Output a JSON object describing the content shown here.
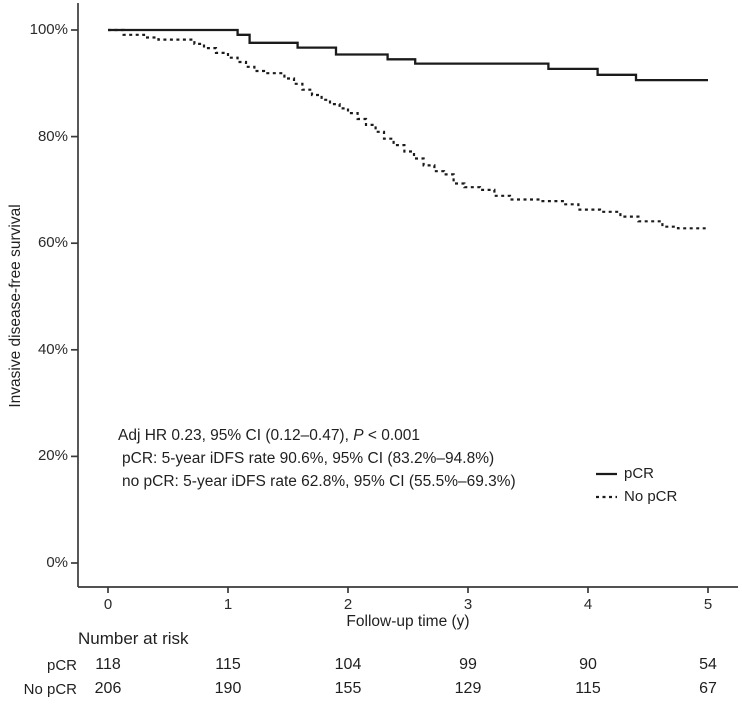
{
  "chart_data": {
    "type": "line",
    "variant": "kaplan-meier-step",
    "title": "",
    "xlabel": "Follow-up time (y)",
    "ylabel": "Invasive disease-free survival",
    "xlim": [
      0,
      5
    ],
    "ylim_pct": [
      0,
      100
    ],
    "x_ticks": [
      "0",
      "1",
      "2",
      "3",
      "4",
      "5"
    ],
    "y_ticks": [
      "0%",
      "20%",
      "40%",
      "60%",
      "80%",
      "100%"
    ],
    "grid": false,
    "legend_position": "right-middle",
    "series": [
      {
        "name": "pCR",
        "style": "solid",
        "color": "#1b1b1b",
        "points": [
          [
            0,
            100
          ],
          [
            1.08,
            99.1
          ],
          [
            1.18,
            97.6
          ],
          [
            1.58,
            96.7
          ],
          [
            1.9,
            95.4
          ],
          [
            2.33,
            94.5
          ],
          [
            2.56,
            93.7
          ],
          [
            3.67,
            92.7
          ],
          [
            4.08,
            91.6
          ],
          [
            4.4,
            90.6
          ],
          [
            5,
            90.6
          ]
        ]
      },
      {
        "name": "No pCR",
        "style": "dotted",
        "color": "#1b1b1b",
        "points": [
          [
            0,
            100
          ],
          [
            0.13,
            99.1
          ],
          [
            0.3,
            98.6
          ],
          [
            0.42,
            98.2
          ],
          [
            0.72,
            97.4
          ],
          [
            0.8,
            96.6
          ],
          [
            0.9,
            95.7
          ],
          [
            1.0,
            94.8
          ],
          [
            1.08,
            94.0
          ],
          [
            1.15,
            93.1
          ],
          [
            1.22,
            92.3
          ],
          [
            1.3,
            91.9
          ],
          [
            1.47,
            90.9
          ],
          [
            1.55,
            89.9
          ],
          [
            1.62,
            88.8
          ],
          [
            1.7,
            87.8
          ],
          [
            1.78,
            86.9
          ],
          [
            1.85,
            86.1
          ],
          [
            1.93,
            85.3
          ],
          [
            2.0,
            84.4
          ],
          [
            2.08,
            83.3
          ],
          [
            2.15,
            82.2
          ],
          [
            2.23,
            80.9
          ],
          [
            2.3,
            79.6
          ],
          [
            2.38,
            78.4
          ],
          [
            2.47,
            77.2
          ],
          [
            2.55,
            75.9
          ],
          [
            2.63,
            74.6
          ],
          [
            2.72,
            73.5
          ],
          [
            2.8,
            72.9
          ],
          [
            2.88,
            71.2
          ],
          [
            2.97,
            70.5
          ],
          [
            3.1,
            70.0
          ],
          [
            3.22,
            68.9
          ],
          [
            3.35,
            68.2
          ],
          [
            3.6,
            67.9
          ],
          [
            3.8,
            67.3
          ],
          [
            3.92,
            66.3
          ],
          [
            4.1,
            65.9
          ],
          [
            4.27,
            65.0
          ],
          [
            4.42,
            64.1
          ],
          [
            4.62,
            63.1
          ],
          [
            4.75,
            62.8
          ],
          [
            5,
            62.8
          ]
        ]
      }
    ]
  },
  "annotation": {
    "line1_prefix": "Adj HR 0.23, 95% CI (0.12–0.47), ",
    "p_symbol": "P",
    "line1_suffix": " < 0.001",
    "line2": "pCR: 5-year iDFS rate 90.6%, 95% CI (83.2%–94.8%)",
    "line3": "no pCR: 5-year iDFS rate 62.8%, 95% CI (55.5%–69.3%)"
  },
  "legend": {
    "items": [
      {
        "label": "pCR",
        "style": "solid"
      },
      {
        "label": "No pCR",
        "style": "dotted"
      }
    ]
  },
  "risk_table": {
    "title": "Number at risk",
    "rows": [
      {
        "label": "pCR",
        "values": [
          118,
          115,
          104,
          99,
          90,
          54
        ]
      },
      {
        "label": "No pCR",
        "values": [
          206,
          190,
          155,
          129,
          115,
          67
        ]
      }
    ]
  },
  "colors": {
    "curve": "#1b1b1b",
    "axis": "#3a3a3a",
    "text": "#1f1f1f",
    "background": "#ffffff"
  }
}
